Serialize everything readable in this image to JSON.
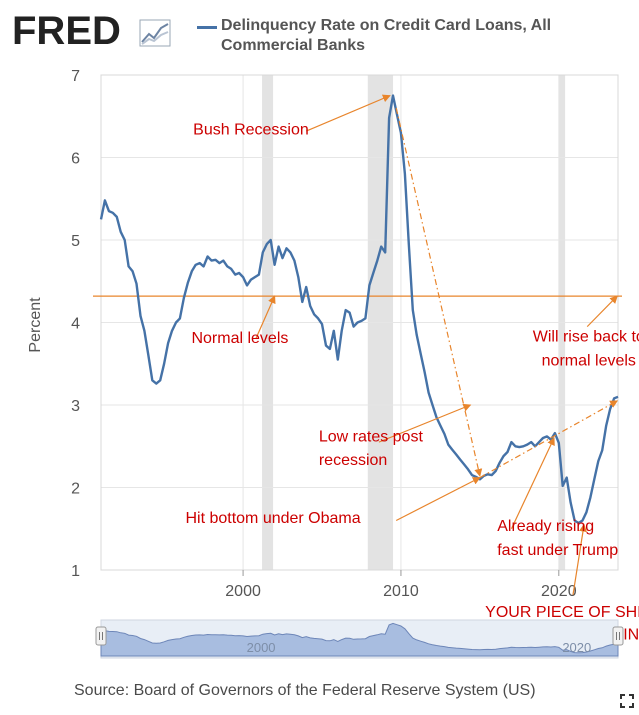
{
  "header": {
    "logo_text": "FRED",
    "legend_label": "Delinquency Rate on Credit Card Loans, All Commercial Banks"
  },
  "chart_data": {
    "type": "line",
    "title": "",
    "xlabel": "",
    "ylabel": "Percent",
    "xlim": [
      1991.0,
      2023.75
    ],
    "ylim": [
      1,
      7
    ],
    "x_ticks": [
      2000,
      2010,
      2020
    ],
    "y_ticks": [
      1,
      2,
      3,
      4,
      5,
      6,
      7
    ],
    "grid": true,
    "recessions": [
      [
        2001.2,
        2001.9
      ],
      [
        2007.9,
        2009.5
      ],
      [
        2020.0,
        2020.4
      ]
    ],
    "series": [
      {
        "name": "Delinquency Rate on Credit Card Loans, All Commercial Banks",
        "color": "#4572a7",
        "x": [
          1991.0,
          1991.25,
          1991.5,
          1991.75,
          1992.0,
          1992.25,
          1992.5,
          1992.75,
          1993.0,
          1993.25,
          1993.5,
          1993.75,
          1994.0,
          1994.25,
          1994.5,
          1994.75,
          1995.0,
          1995.25,
          1995.5,
          1995.75,
          1996.0,
          1996.25,
          1996.5,
          1996.75,
          1997.0,
          1997.25,
          1997.5,
          1997.75,
          1998.0,
          1998.25,
          1998.5,
          1998.75,
          1999.0,
          1999.25,
          1999.5,
          1999.75,
          2000.0,
          2000.25,
          2000.5,
          2000.75,
          2001.0,
          2001.25,
          2001.5,
          2001.75,
          2002.0,
          2002.25,
          2002.5,
          2002.75,
          2003.0,
          2003.25,
          2003.5,
          2003.75,
          2004.0,
          2004.25,
          2004.5,
          2004.75,
          2005.0,
          2005.25,
          2005.5,
          2005.75,
          2006.0,
          2006.25,
          2006.5,
          2006.75,
          2007.0,
          2007.25,
          2007.5,
          2007.75,
          2008.0,
          2008.25,
          2008.5,
          2008.75,
          2009.0,
          2009.25,
          2009.5,
          2009.75,
          2010.0,
          2010.25,
          2010.5,
          2010.75,
          2011.0,
          2011.25,
          2011.5,
          2011.75,
          2012.0,
          2012.25,
          2012.5,
          2012.75,
          2013.0,
          2013.25,
          2013.5,
          2013.75,
          2014.0,
          2014.25,
          2014.5,
          2014.75,
          2015.0,
          2015.25,
          2015.5,
          2015.75,
          2016.0,
          2016.25,
          2016.5,
          2016.75,
          2017.0,
          2017.25,
          2017.5,
          2017.75,
          2018.0,
          2018.25,
          2018.5,
          2018.75,
          2019.0,
          2019.25,
          2019.5,
          2019.75,
          2020.0,
          2020.25,
          2020.5,
          2020.75,
          2021.0,
          2021.25,
          2021.5,
          2021.75,
          2022.0,
          2022.25,
          2022.5,
          2022.75,
          2023.0,
          2023.25,
          2023.5,
          2023.75
        ],
        "values": [
          5.25,
          5.48,
          5.35,
          5.33,
          5.28,
          5.1,
          5.0,
          4.68,
          4.62,
          4.47,
          4.08,
          3.9,
          3.6,
          3.3,
          3.26,
          3.3,
          3.5,
          3.75,
          3.9,
          4.0,
          4.05,
          4.3,
          4.48,
          4.62,
          4.7,
          4.72,
          4.68,
          4.8,
          4.75,
          4.76,
          4.72,
          4.75,
          4.68,
          4.65,
          4.58,
          4.6,
          4.55,
          4.45,
          4.52,
          4.55,
          4.58,
          4.85,
          4.95,
          5.0,
          4.7,
          4.92,
          4.78,
          4.9,
          4.85,
          4.75,
          4.55,
          4.25,
          4.43,
          4.2,
          4.1,
          4.05,
          3.98,
          3.72,
          3.68,
          3.9,
          3.55,
          3.9,
          4.15,
          4.12,
          3.95,
          4.0,
          4.02,
          4.05,
          4.45,
          4.6,
          4.75,
          4.92,
          4.85,
          6.48,
          6.75,
          6.52,
          6.3,
          5.8,
          4.95,
          4.15,
          3.85,
          3.62,
          3.4,
          3.15,
          3.0,
          2.85,
          2.75,
          2.65,
          2.52,
          2.46,
          2.4,
          2.34,
          2.28,
          2.22,
          2.15,
          2.13,
          2.1,
          2.14,
          2.16,
          2.15,
          2.2,
          2.3,
          2.38,
          2.43,
          2.55,
          2.5,
          2.49,
          2.5,
          2.52,
          2.55,
          2.5,
          2.55,
          2.6,
          2.62,
          2.58,
          2.66,
          2.54,
          2.02,
          2.12,
          1.82,
          1.6,
          1.57,
          1.6,
          1.7,
          1.88,
          2.1,
          2.32,
          2.45,
          2.75,
          2.95,
          3.08,
          3.1
        ]
      }
    ],
    "reference_lines": [
      {
        "y": 4.32,
        "color": "#e8852c"
      }
    ],
    "annotations": [
      {
        "text": "Bush Recession",
        "x": 2000.5,
        "y": 6.28,
        "color": "#cc0000",
        "anchor": "middle"
      },
      {
        "text": "Normal levels",
        "x": 1999.8,
        "y": 3.75,
        "color": "#cc0000",
        "anchor": "middle"
      },
      {
        "text": "Will rise back to",
        "x": 2021.9,
        "y": 3.77,
        "color": "#cc0000",
        "anchor": "middle"
      },
      {
        "text": "normal levels",
        "x": 2021.9,
        "y": 3.48,
        "color": "#cc0000",
        "anchor": "middle"
      },
      {
        "text": "Low rates post",
        "x": 2004.8,
        "y": 2.56,
        "color": "#cc0000",
        "anchor": "start"
      },
      {
        "text": "recession",
        "x": 2004.8,
        "y": 2.27,
        "color": "#cc0000",
        "anchor": "start"
      },
      {
        "text": "Hit bottom under Obama",
        "x": 2001.9,
        "y": 1.57,
        "color": "#cc0000",
        "anchor": "middle"
      },
      {
        "text": "Already rising",
        "x": 2016.1,
        "y": 1.47,
        "color": "#cc0000",
        "anchor": "start"
      },
      {
        "text": "fast under Trump",
        "x": 2016.1,
        "y": 1.18,
        "color": "#cc0000",
        "anchor": "start"
      },
      {
        "text": "YOUR PIECE OF SHIT",
        "x": 2020.6,
        "y": 0.43,
        "color": "#cc0000",
        "anchor": "middle"
      },
      {
        "text": "COMPARISON POINT",
        "x": 2020.6,
        "y": 0.16,
        "color": "#cc0000",
        "anchor": "middle"
      }
    ],
    "arrows": [
      {
        "from": [
          2004.0,
          6.32
        ],
        "to": [
          2009.3,
          6.75
        ],
        "color": "#e8852c",
        "style": "solid"
      },
      {
        "from": [
          2000.8,
          3.8
        ],
        "to": [
          2002.0,
          4.32
        ],
        "color": "#e8852c",
        "style": "solid"
      },
      {
        "from": [
          2021.8,
          3.95
        ],
        "to": [
          2023.7,
          4.32
        ],
        "color": "#e8852c",
        "style": "solid"
      },
      {
        "from": [
          2008.6,
          2.55
        ],
        "to": [
          2014.4,
          3.0
        ],
        "color": "#e8852c",
        "style": "solid"
      },
      {
        "from": [
          2009.7,
          1.6
        ],
        "to": [
          2015.0,
          2.12
        ],
        "color": "#e8852c",
        "style": "solid"
      },
      {
        "from": [
          2017.0,
          1.5
        ],
        "to": [
          2019.7,
          2.6
        ],
        "color": "#e8852c",
        "style": "solid"
      },
      {
        "from": [
          2020.9,
          0.7
        ],
        "to": [
          2021.6,
          1.55
        ],
        "color": "#e8852c",
        "style": "solid"
      },
      {
        "from": [
          2009.7,
          6.6
        ],
        "to": [
          2015.0,
          2.14
        ],
        "color": "#e8852c",
        "style": "dashed"
      },
      {
        "from": [
          2015.0,
          2.12
        ],
        "to": [
          2023.7,
          3.05
        ],
        "color": "#e8852c",
        "style": "dashed"
      }
    ],
    "navigator": {
      "labels": [
        "2000",
        "2020"
      ],
      "label_x": [
        2000,
        2020
      ],
      "xlim": [
        1991.0,
        2023.75
      ],
      "ylim": [
        1,
        7
      ]
    }
  },
  "footer": {
    "source": "Source: Board of Governors of the Federal Reserve System (US)"
  }
}
